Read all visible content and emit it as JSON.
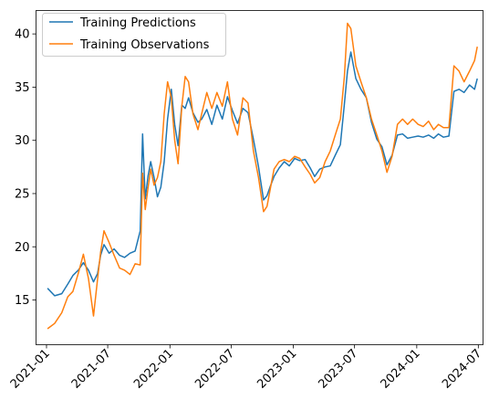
{
  "chart_data": {
    "type": "line",
    "title": "",
    "xlabel": "",
    "ylabel": "",
    "x_axis_type": "date",
    "xlim": [
      "2020-12-01",
      "2024-07-15"
    ],
    "ylim": [
      10.8,
      42.2
    ],
    "grid": false,
    "legend_position": "top-left",
    "x_ticks": [
      "2021-01",
      "2021-07",
      "2022-01",
      "2022-07",
      "2023-01",
      "2023-07",
      "2024-01",
      "2024-07"
    ],
    "y_ticks": [
      15,
      20,
      25,
      30,
      35,
      40
    ],
    "colors": {
      "Training Predictions": "#1f77b4",
      "Training Observations": "#ff7f0e"
    },
    "series": [
      {
        "name": "Training Predictions",
        "x": [
          "2021-01-04",
          "2021-01-25",
          "2021-02-15",
          "2021-03-05",
          "2021-03-20",
          "2021-04-05",
          "2021-04-20",
          "2021-05-05",
          "2021-05-20",
          "2021-06-01",
          "2021-06-10",
          "2021-06-20",
          "2021-07-05",
          "2021-07-20",
          "2021-08-05",
          "2021-08-20",
          "2021-09-05",
          "2021-09-20",
          "2021-10-05",
          "2021-10-12",
          "2021-10-20",
          "2021-10-28",
          "2021-11-05",
          "2021-11-15",
          "2021-11-25",
          "2021-12-05",
          "2021-12-15",
          "2021-12-25",
          "2022-01-05",
          "2022-01-15",
          "2022-01-25",
          "2022-02-05",
          "2022-02-15",
          "2022-02-25",
          "2022-03-10",
          "2022-03-25",
          "2022-04-05",
          "2022-04-20",
          "2022-05-05",
          "2022-05-20",
          "2022-06-05",
          "2022-06-20",
          "2022-07-05",
          "2022-07-20",
          "2022-08-05",
          "2022-08-20",
          "2022-09-05",
          "2022-09-20",
          "2022-10-05",
          "2022-10-15",
          "2022-10-25",
          "2022-11-05",
          "2022-11-20",
          "2022-12-05",
          "2022-12-20",
          "2023-01-05",
          "2023-01-20",
          "2023-02-05",
          "2023-02-20",
          "2023-03-05",
          "2023-03-20",
          "2023-04-05",
          "2023-04-20",
          "2023-05-05",
          "2023-05-20",
          "2023-06-01",
          "2023-06-10",
          "2023-06-20",
          "2023-07-05",
          "2023-07-20",
          "2023-08-05",
          "2023-08-20",
          "2023-09-05",
          "2023-09-20",
          "2023-10-05",
          "2023-10-20",
          "2023-11-05",
          "2023-11-20",
          "2023-12-05",
          "2023-12-20",
          "2024-01-05",
          "2024-01-20",
          "2024-02-05",
          "2024-02-20",
          "2024-03-05",
          "2024-03-20",
          "2024-04-05",
          "2024-04-20",
          "2024-05-05",
          "2024-05-20",
          "2024-06-05",
          "2024-06-20",
          "2024-06-28"
        ],
        "y": [
          16.1,
          15.4,
          15.6,
          16.5,
          17.3,
          17.8,
          18.5,
          17.8,
          16.7,
          17.5,
          19.2,
          20.2,
          19.4,
          19.8,
          19.2,
          19.0,
          19.4,
          19.6,
          21.5,
          30.6,
          24.5,
          26.6,
          28.0,
          26.5,
          24.7,
          25.6,
          28.0,
          32.0,
          34.8,
          31.5,
          29.5,
          33.3,
          33.0,
          34.0,
          32.6,
          31.7,
          32.0,
          32.9,
          31.5,
          33.3,
          32.0,
          34.1,
          32.8,
          31.6,
          33.0,
          32.6,
          30.1,
          27.5,
          24.4,
          24.8,
          25.7,
          26.6,
          27.4,
          28.0,
          27.6,
          28.3,
          28.1,
          28.2,
          27.4,
          26.6,
          27.3,
          27.5,
          27.6,
          28.6,
          29.6,
          33.4,
          36.5,
          38.3,
          35.8,
          34.8,
          34.0,
          31.7,
          30.1,
          29.4,
          27.7,
          28.6,
          30.5,
          30.6,
          30.2,
          30.3,
          30.4,
          30.3,
          30.5,
          30.2,
          30.6,
          30.3,
          30.4,
          34.6,
          34.8,
          34.5,
          35.2,
          34.8,
          35.8
        ]
      },
      {
        "name": "Training Observations",
        "x": [
          "2021-01-04",
          "2021-01-25",
          "2021-02-15",
          "2021-03-05",
          "2021-03-20",
          "2021-04-05",
          "2021-04-20",
          "2021-05-05",
          "2021-05-20",
          "2021-06-01",
          "2021-06-10",
          "2021-06-20",
          "2021-07-05",
          "2021-07-20",
          "2021-08-05",
          "2021-08-20",
          "2021-09-05",
          "2021-09-20",
          "2021-10-05",
          "2021-10-12",
          "2021-10-20",
          "2021-10-28",
          "2021-11-05",
          "2021-11-15",
          "2021-11-25",
          "2021-12-05",
          "2021-12-15",
          "2021-12-25",
          "2022-01-05",
          "2022-01-15",
          "2022-01-25",
          "2022-02-05",
          "2022-02-15",
          "2022-02-25",
          "2022-03-10",
          "2022-03-25",
          "2022-04-05",
          "2022-04-20",
          "2022-05-05",
          "2022-05-20",
          "2022-06-05",
          "2022-06-20",
          "2022-07-05",
          "2022-07-20",
          "2022-08-05",
          "2022-08-20",
          "2022-09-05",
          "2022-09-20",
          "2022-10-05",
          "2022-10-15",
          "2022-10-25",
          "2022-11-05",
          "2022-11-20",
          "2022-12-05",
          "2022-12-20",
          "2023-01-05",
          "2023-01-20",
          "2023-02-05",
          "2023-02-20",
          "2023-03-05",
          "2023-03-20",
          "2023-04-05",
          "2023-04-20",
          "2023-05-05",
          "2023-05-20",
          "2023-06-01",
          "2023-06-10",
          "2023-06-20",
          "2023-07-05",
          "2023-07-20",
          "2023-08-05",
          "2023-08-20",
          "2023-09-05",
          "2023-09-20",
          "2023-10-05",
          "2023-10-20",
          "2023-11-05",
          "2023-11-20",
          "2023-12-05",
          "2023-12-20",
          "2024-01-05",
          "2024-01-20",
          "2024-02-05",
          "2024-02-20",
          "2024-03-05",
          "2024-03-20",
          "2024-04-05",
          "2024-04-20",
          "2024-05-05",
          "2024-05-20",
          "2024-06-05",
          "2024-06-20",
          "2024-06-28"
        ],
        "y": [
          12.3,
          12.8,
          13.8,
          15.3,
          15.8,
          17.5,
          19.3,
          17.0,
          13.5,
          17.0,
          19.5,
          21.5,
          20.4,
          19.2,
          18.0,
          17.8,
          17.4,
          18.4,
          18.3,
          26.9,
          23.5,
          25.5,
          27.3,
          25.8,
          26.5,
          28.0,
          32.5,
          35.5,
          34.0,
          30.0,
          27.8,
          33.2,
          36.0,
          35.5,
          32.5,
          31.0,
          32.5,
          34.5,
          33.0,
          34.5,
          33.2,
          35.5,
          32.0,
          30.5,
          34.0,
          33.5,
          29.0,
          26.5,
          23.3,
          23.8,
          25.5,
          27.3,
          28.0,
          28.2,
          28.0,
          28.5,
          28.3,
          27.5,
          26.8,
          26.0,
          26.5,
          28.0,
          29.0,
          30.5,
          32.0,
          36.0,
          41.0,
          40.5,
          37.0,
          35.5,
          34.0,
          32.0,
          30.5,
          29.0,
          27.0,
          28.5,
          31.5,
          32.0,
          31.5,
          32.0,
          31.5,
          31.3,
          31.8,
          31.0,
          31.5,
          31.2,
          31.2,
          37.0,
          36.5,
          35.5,
          36.5,
          37.5,
          38.8
        ]
      }
    ]
  }
}
